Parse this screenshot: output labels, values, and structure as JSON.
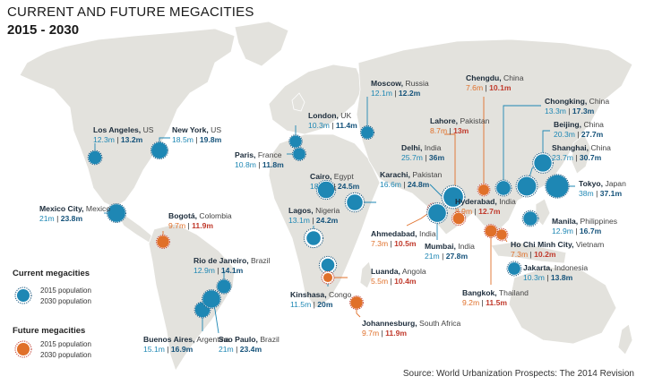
{
  "title": "CURRENT AND FUTURE MEGACITIES",
  "subtitle": "2015 - 2030",
  "source": "Source: World Urbanization Prospects: The 2014 Revision",
  "colors": {
    "current_2015": "#1e87b4",
    "current_2030": "#14527a",
    "future_2015": "#e0702a",
    "future_2030": "#c0392b",
    "land": "#e3e2dd"
  },
  "legend": {
    "current_title": "Current megacities",
    "future_title": "Future megacities",
    "pop_2015": "2015 population",
    "pop_2030": "2030 population"
  },
  "cities": [
    {
      "id": "los-angeles",
      "name": "Los Angeles,",
      "country": "US",
      "pop_2015": "12.3m",
      "pop_2030": "13.2m",
      "type": "current"
    },
    {
      "id": "new-york",
      "name": "New York,",
      "country": "US",
      "pop_2015": "18.5m",
      "pop_2030": "19.8m",
      "type": "current"
    },
    {
      "id": "mexico-city",
      "name": "Mexico City,",
      "country": "Mexico",
      "pop_2015": "21m",
      "pop_2030": "23.8m",
      "type": "current"
    },
    {
      "id": "bogota",
      "name": "Bogotá,",
      "country": "Colombia",
      "pop_2015": "9.7m",
      "pop_2030": "11.9m",
      "type": "future"
    },
    {
      "id": "rio",
      "name": "Rio de Janeiro,",
      "country": "Brazil",
      "pop_2015": "12.9m",
      "pop_2030": "14.1m",
      "type": "current"
    },
    {
      "id": "buenos-aires",
      "name": "Buenos Aires,",
      "country": "Argentina",
      "pop_2015": "15.1m",
      "pop_2030": "16.9m",
      "type": "current"
    },
    {
      "id": "sao-paulo",
      "name": "Sao Paulo,",
      "country": "Brazil",
      "pop_2015": "21m",
      "pop_2030": "23.4m",
      "type": "current"
    },
    {
      "id": "london",
      "name": "London,",
      "country": "UK",
      "pop_2015": "10.3m",
      "pop_2030": "11.4m",
      "type": "current"
    },
    {
      "id": "paris",
      "name": "Paris,",
      "country": "France",
      "pop_2015": "10.8m",
      "pop_2030": "11.8m",
      "type": "current"
    },
    {
      "id": "moscow",
      "name": "Moscow,",
      "country": "Russia",
      "pop_2015": "12.1m",
      "pop_2030": "12.2m",
      "type": "current"
    },
    {
      "id": "cairo",
      "name": "Cairo,",
      "country": "Egypt",
      "pop_2015": "18.7m",
      "pop_2030": "24.5m",
      "type": "current"
    },
    {
      "id": "lagos",
      "name": "Lagos,",
      "country": "Nigeria",
      "pop_2015": "13.1m",
      "pop_2030": "24.2m",
      "type": "current"
    },
    {
      "id": "kinshasa",
      "name": "Kinshasa,",
      "country": "Congo",
      "pop_2015": "11.5m",
      "pop_2030": "20m",
      "type": "current"
    },
    {
      "id": "luanda",
      "name": "Luanda,",
      "country": "Angola",
      "pop_2015": "5.5m",
      "pop_2030": "10.4m",
      "type": "future"
    },
    {
      "id": "johannesburg",
      "name": "Johannesburg,",
      "country": "South Africa",
      "pop_2015": "9.7m",
      "pop_2030": "11.9m",
      "type": "future"
    },
    {
      "id": "karachi",
      "name": "Karachi,",
      "country": "Pakistan",
      "pop_2015": "16.6m",
      "pop_2030": "24.8m",
      "type": "current"
    },
    {
      "id": "lahore",
      "name": "Lahore,",
      "country": "Pakistan",
      "pop_2015": "8.7m",
      "pop_2030": "13m",
      "type": "future"
    },
    {
      "id": "delhi",
      "name": "Delhi,",
      "country": "India",
      "pop_2015": "25.7m",
      "pop_2030": "36m",
      "type": "current"
    },
    {
      "id": "ahmedabad",
      "name": "Ahmedabad,",
      "country": "India",
      "pop_2015": "7.3m",
      "pop_2030": "10.5m",
      "type": "future"
    },
    {
      "id": "mumbai",
      "name": "Mumbai,",
      "country": "India",
      "pop_2015": "21m",
      "pop_2030": "27.8m",
      "type": "current"
    },
    {
      "id": "hyderabad",
      "name": "Hyderabad,",
      "country": "India",
      "pop_2015": "8.9m",
      "pop_2030": "12.7m",
      "type": "future"
    },
    {
      "id": "chengdu",
      "name": "Chengdu,",
      "country": "China",
      "pop_2015": "7.6m",
      "pop_2030": "10.1m",
      "type": "future"
    },
    {
      "id": "chongking",
      "name": "Chongking,",
      "country": "China",
      "pop_2015": "13.3m",
      "pop_2030": "17.3m",
      "type": "current"
    },
    {
      "id": "beijing",
      "name": "Beijing,",
      "country": "China",
      "pop_2015": "20.3m",
      "pop_2030": "27.7m",
      "type": "current"
    },
    {
      "id": "shanghai",
      "name": "Shanghai,",
      "country": "China",
      "pop_2015": "23.7m",
      "pop_2030": "30.7m",
      "type": "current"
    },
    {
      "id": "tokyo",
      "name": "Tokyo,",
      "country": "Japan",
      "pop_2015": "38m",
      "pop_2030": "37.1m",
      "type": "current"
    },
    {
      "id": "manila",
      "name": "Manila,",
      "country": "Philippines",
      "pop_2015": "12.9m",
      "pop_2030": "16.7m",
      "type": "current"
    },
    {
      "id": "hcmc",
      "name": "Ho Chi Minh City,",
      "country": "Vietnam",
      "pop_2015": "7.3m",
      "pop_2030": "10.2m",
      "type": "future"
    },
    {
      "id": "jakarta",
      "name": "Jakarta,",
      "country": "Indonesia",
      "pop_2015": "10.3m",
      "pop_2030": "13.8m",
      "type": "current"
    },
    {
      "id": "bangkok",
      "name": "Bangkok,",
      "country": "Thailand",
      "pop_2015": "9.2m",
      "pop_2030": "11.5m",
      "type": "future"
    }
  ]
}
